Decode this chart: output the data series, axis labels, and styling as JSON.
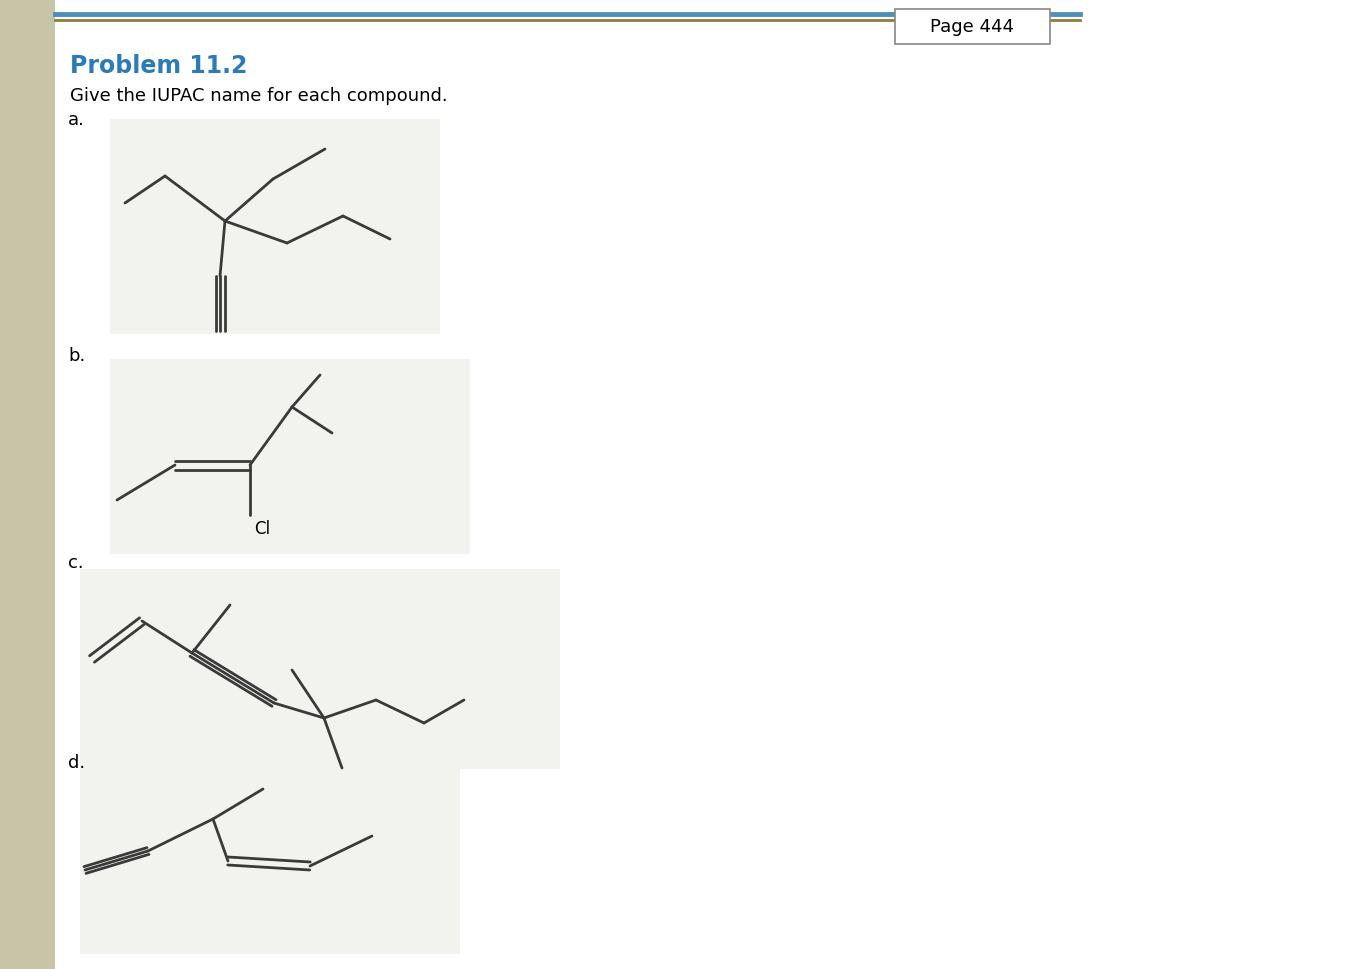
{
  "title": "Problem 11.2",
  "subtitle": "Give the IUPAC name for each compound.",
  "page_label": "Page 444",
  "title_color": "#2B7BB9",
  "background_color": "#FFFFFF",
  "panel_bg": "#F2F2EE",
  "line_color": "#3A3A3A",
  "sidebar_color": "#C8C4A8",
  "label_a": "a.",
  "label_b": "b.",
  "label_c": "c.",
  "label_d": "d.",
  "top_bar_color1": "#4A90B8",
  "top_bar_color2": "#8B7D3A",
  "cl_color": "#000000"
}
